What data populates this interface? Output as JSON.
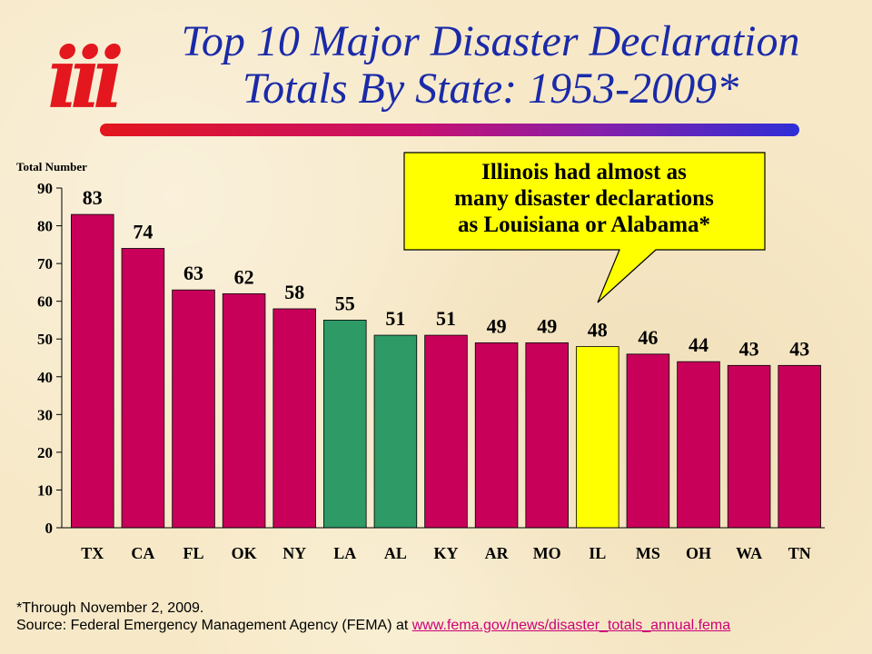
{
  "header": {
    "logo_text": "iii",
    "title_line1": "Top 10 Major Disaster Declaration",
    "title_line2": "Totals By State: 1953-2009*"
  },
  "callout": {
    "line1": "Illinois had almost as",
    "line2": "many disaster declarations",
    "line3": "as Louisiana or Alabama*"
  },
  "footnote": {
    "line1": "*Through November 2, 2009.",
    "source_prefix": "Source: Federal Emergency Management Agency (FEMA) at ",
    "source_link": "www.fema.gov/news/disaster_totals_annual.fema"
  },
  "colors": {
    "default_bar": "#c8005a",
    "highlight_green": "#2e9a66",
    "highlight_yellow": "#ffff00",
    "title": "#1a2aa8",
    "logo": "#e3171d"
  },
  "chart_data": {
    "type": "bar",
    "title": "",
    "xlabel": "",
    "ylabel": "Total Number",
    "ylim": [
      0,
      90
    ],
    "yticks": [
      0,
      10,
      20,
      30,
      40,
      50,
      60,
      70,
      80,
      90
    ],
    "grid": false,
    "legend": "none",
    "categories": [
      "TX",
      "CA",
      "FL",
      "OK",
      "NY",
      "LA",
      "AL",
      "KY",
      "AR",
      "MO",
      "IL",
      "MS",
      "OH",
      "WA",
      "TN"
    ],
    "values": [
      83,
      74,
      63,
      62,
      58,
      55,
      51,
      51,
      49,
      49,
      48,
      46,
      44,
      43,
      43
    ],
    "bar_colors": [
      "#c8005a",
      "#c8005a",
      "#c8005a",
      "#c8005a",
      "#c8005a",
      "#2e9a66",
      "#2e9a66",
      "#c8005a",
      "#c8005a",
      "#c8005a",
      "#ffff00",
      "#c8005a",
      "#c8005a",
      "#c8005a",
      "#c8005a"
    ],
    "data_labels": true
  }
}
